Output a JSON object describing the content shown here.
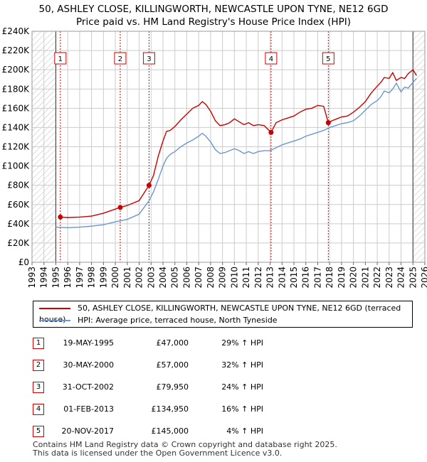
{
  "title": {
    "line1": "50, ASHLEY CLOSE, KILLINGWORTH, NEWCASTLE UPON TYNE, NE12 6GD",
    "line2": "Price paid vs. HM Land Registry's House Price Index (HPI)"
  },
  "legend": {
    "red": "50, ASHLEY CLOSE, KILLINGWORTH, NEWCASTLE UPON TYNE, NE12 6GD (terraced house)",
    "blue": "HPI: Average price, terraced house, North Tyneside"
  },
  "colors": {
    "red": "#cc0000",
    "blue": "#6a97cf",
    "grid": "#cccccc",
    "hatch": "#bbbbbb",
    "shade": "#dce6f4"
  },
  "sales": [
    {
      "num": "1",
      "date": "19-MAY-1995",
      "price": "£47,000",
      "hpi": "29% ↑ HPI"
    },
    {
      "num": "2",
      "date": "30-MAY-2000",
      "price": "£57,000",
      "hpi": "32% ↑ HPI"
    },
    {
      "num": "3",
      "date": "31-OCT-2002",
      "price": "£79,950",
      "hpi": "24% ↑ HPI"
    },
    {
      "num": "4",
      "date": "01-FEB-2013",
      "price": "£134,950",
      "hpi": "16% ↑ HPI"
    },
    {
      "num": "5",
      "date": "20-NOV-2017",
      "price": "£145,000",
      "hpi": "4% ↑ HPI"
    }
  ],
  "footer": {
    "line1": "Contains HM Land Registry data © Crown copyright and database right 2025.",
    "line2": "This data is licensed under the Open Government Licence v3.0."
  },
  "chart_data": {
    "type": "line",
    "title": "Price paid vs. HM Land Registry's House Price Index (HPI)",
    "xlim": [
      1993,
      2026
    ],
    "ylim": [
      0,
      240000
    ],
    "x_ticks": [
      "1993",
      "1994",
      "1995",
      "1996",
      "1997",
      "1998",
      "1999",
      "2000",
      "2001",
      "2002",
      "2003",
      "2004",
      "2005",
      "2006",
      "2007",
      "2008",
      "2009",
      "2010",
      "2011",
      "2012",
      "2013",
      "2014",
      "2015",
      "2016",
      "2017",
      "2018",
      "2019",
      "2020",
      "2021",
      "2022",
      "2023",
      "2024",
      "2025",
      "2026"
    ],
    "y_ticks": [
      "£0",
      "£20K",
      "£40K",
      "£60K",
      "£80K",
      "£100K",
      "£120K",
      "£140K",
      "£160K",
      "£180K",
      "£200K",
      "£220K",
      "£240K"
    ],
    "y_tick_values": [
      0,
      20000,
      40000,
      60000,
      80000,
      100000,
      120000,
      140000,
      160000,
      180000,
      200000,
      220000,
      240000
    ],
    "hatched_before": 1995.0,
    "hatched_after": 2025.0,
    "sale_points": [
      {
        "label": "1",
        "x": 1995.38,
        "y": 47000
      },
      {
        "label": "2",
        "x": 2000.41,
        "y": 57000
      },
      {
        "label": "3",
        "x": 2002.83,
        "y": 79950
      },
      {
        "label": "4",
        "x": 2013.08,
        "y": 134950
      },
      {
        "label": "5",
        "x": 2017.89,
        "y": 145000
      }
    ],
    "series": [
      {
        "name": "50, ASHLEY CLOSE, KILLINGWORTH, NEWCASTLE UPON TYNE, NE12 6GD (terraced house)",
        "color": "#cc0000",
        "x": [
          1995.38,
          1996.0,
          1997.0,
          1998.0,
          1999.0,
          2000.41,
          2001.0,
          2002.0,
          2002.83,
          2003.2,
          2003.6,
          2004.0,
          2004.3,
          2004.6,
          2005.0,
          2005.5,
          2006.0,
          2006.5,
          2007.0,
          2007.3,
          2007.6,
          2008.0,
          2008.4,
          2008.8,
          2009.2,
          2009.6,
          2010.0,
          2010.4,
          2010.8,
          2011.2,
          2011.6,
          2012.0,
          2012.5,
          2013.08,
          2013.5,
          2014.0,
          2014.5,
          2015.0,
          2015.5,
          2016.0,
          2016.5,
          2017.0,
          2017.5,
          2017.89,
          2018.2,
          2018.6,
          2019.0,
          2019.5,
          2020.0,
          2020.5,
          2021.0,
          2021.5,
          2022.0,
          2022.3,
          2022.6,
          2023.0,
          2023.3,
          2023.6,
          2024.0,
          2024.3,
          2024.6,
          2025.0,
          2025.3
        ],
        "y": [
          47000,
          46500,
          47000,
          48000,
          51000,
          57000,
          59000,
          64000,
          79950,
          90000,
          110000,
          126000,
          136000,
          137000,
          141000,
          148000,
          154000,
          160000,
          163000,
          167000,
          164000,
          157000,
          147000,
          142000,
          143000,
          145000,
          149000,
          146000,
          143000,
          145000,
          142000,
          143000,
          142000,
          134950,
          145000,
          148000,
          150000,
          152000,
          156000,
          159000,
          160000,
          163000,
          162000,
          145000,
          147000,
          149000,
          151000,
          152000,
          156000,
          161000,
          167000,
          176000,
          183000,
          187000,
          192000,
          191000,
          197000,
          189000,
          192000,
          191000,
          196000,
          200000,
          194000
        ]
      },
      {
        "name": "HPI: Average price, terraced house, North Tyneside",
        "color": "#6a97cf",
        "x": [
          1995.0,
          1996.0,
          1997.0,
          1998.0,
          1999.0,
          2000.0,
          2001.0,
          2002.0,
          2002.83,
          2003.2,
          2003.6,
          2004.0,
          2004.3,
          2004.6,
          2005.0,
          2005.5,
          2006.0,
          2006.5,
          2007.0,
          2007.3,
          2007.6,
          2008.0,
          2008.4,
          2008.8,
          2009.2,
          2009.6,
          2010.0,
          2010.4,
          2010.8,
          2011.2,
          2011.6,
          2012.0,
          2012.5,
          2013.0,
          2013.5,
          2014.0,
          2014.5,
          2015.0,
          2015.5,
          2016.0,
          2016.5,
          2017.0,
          2017.5,
          2018.0,
          2018.5,
          2019.0,
          2019.5,
          2020.0,
          2020.5,
          2021.0,
          2021.5,
          2022.0,
          2022.3,
          2022.6,
          2023.0,
          2023.3,
          2023.6,
          2024.0,
          2024.3,
          2024.6,
          2025.0,
          2025.3
        ],
        "y": [
          36500,
          36000,
          36500,
          37500,
          39000,
          42000,
          44500,
          50000,
          64000,
          73000,
          86000,
          100000,
          108000,
          112000,
          115000,
          120000,
          124000,
          127000,
          131000,
          134000,
          131000,
          125000,
          117000,
          113000,
          114000,
          116000,
          118000,
          116000,
          113000,
          115000,
          113000,
          115000,
          116000,
          116000,
          119000,
          122000,
          124000,
          126000,
          128000,
          131000,
          133000,
          135000,
          137000,
          140000,
          142000,
          144000,
          145000,
          147000,
          152000,
          158000,
          164000,
          168000,
          172000,
          178000,
          176000,
          180000,
          186000,
          177000,
          182000,
          181000,
          187000,
          191000
        ]
      }
    ]
  }
}
